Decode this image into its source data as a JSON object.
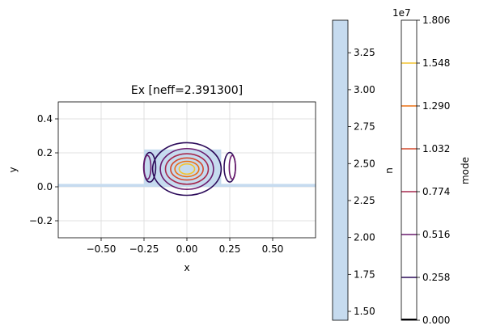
{
  "chart_data": {
    "type": "contour",
    "title": "Ex [neff=2.391300]",
    "xlabel": "x",
    "ylabel": "y",
    "xlim": [
      -0.75,
      0.75
    ],
    "ylim": [
      -0.3,
      0.5
    ],
    "xticks": [
      -0.5,
      -0.25,
      0.0,
      0.25,
      0.5
    ],
    "xtick_labels": [
      "−0.50",
      "−0.25",
      "0.00",
      "0.25",
      "0.50"
    ],
    "yticks": [
      -0.2,
      0.0,
      0.2,
      0.4
    ],
    "ytick_labels": [
      "−0.2",
      "0.0",
      "0.2",
      "0.4"
    ],
    "grid": true,
    "refractive_index": {
      "waveguide_core": {
        "x": [
          -0.25,
          0.2
        ],
        "y": [
          0.0,
          0.22
        ],
        "n": 3.47
      },
      "slab": {
        "x": [
          -0.75,
          0.75
        ],
        "y": [
          0.0,
          0.01
        ],
        "n": 3.47
      },
      "background_n": 1.44
    },
    "mode_contours": [
      {
        "level": 0.258,
        "color": "#2c0b5a",
        "rings": [
          {
            "cx": 0.0,
            "cy": 0.105,
            "rx": 0.2,
            "ry": 0.155
          },
          {
            "cx": -0.217,
            "cy": 0.115,
            "rx": 0.035,
            "ry": 0.087
          },
          {
            "cx": 0.25,
            "cy": 0.115,
            "rx": 0.033,
            "ry": 0.087
          }
        ]
      },
      {
        "level": 0.516,
        "color": "#6a1c6e",
        "rings": [
          {
            "cx": 0.0,
            "cy": 0.105,
            "rx": 0.155,
            "ry": 0.12
          },
          {
            "cx": -0.23,
            "cy": 0.115,
            "rx": 0.02,
            "ry": 0.07
          },
          {
            "cx": 0.265,
            "cy": 0.115,
            "rx": 0.018,
            "ry": 0.07
          }
        ]
      },
      {
        "level": 0.774,
        "color": "#a6294e",
        "rings": [
          {
            "cx": 0.0,
            "cy": 0.105,
            "rx": 0.125,
            "ry": 0.09
          }
        ]
      },
      {
        "level": 1.032,
        "color": "#d44a2d",
        "rings": [
          {
            "cx": 0.0,
            "cy": 0.105,
            "rx": 0.095,
            "ry": 0.065
          }
        ]
      },
      {
        "level": 1.29,
        "color": "#ec7014",
        "rings": [
          {
            "cx": 0.0,
            "cy": 0.105,
            "rx": 0.07,
            "ry": 0.045
          }
        ]
      },
      {
        "level": 1.548,
        "color": "#f4c430",
        "rings": [
          {
            "cx": 0.0,
            "cy": 0.105,
            "rx": 0.045,
            "ry": 0.03
          }
        ]
      }
    ],
    "colorbar_n": {
      "label": "n",
      "range": [
        1.44,
        3.47
      ],
      "ticks": [
        1.5,
        1.75,
        2.0,
        2.25,
        2.5,
        2.75,
        3.0,
        3.25
      ],
      "tick_labels": [
        "1.50",
        "1.75",
        "2.00",
        "2.25",
        "2.50",
        "2.75",
        "3.00",
        "3.25"
      ],
      "color": "#c6dbef"
    },
    "colorbar_mode": {
      "label": "mode",
      "exponent": "1e7",
      "range": [
        0.0,
        1.806
      ],
      "levels": [
        0.0,
        0.258,
        0.516,
        0.774,
        1.032,
        1.29,
        1.548,
        1.806
      ],
      "tick_labels": [
        "0.000",
        "0.258",
        "0.516",
        "0.774",
        "1.032",
        "1.290",
        "1.548",
        "1.806"
      ],
      "level_colors": [
        "#000004",
        "#2c0b5a",
        "#6a1c6e",
        "#a6294e",
        "#d44a2d",
        "#ec7014",
        "#f4c430",
        "#fcffa4"
      ]
    }
  }
}
